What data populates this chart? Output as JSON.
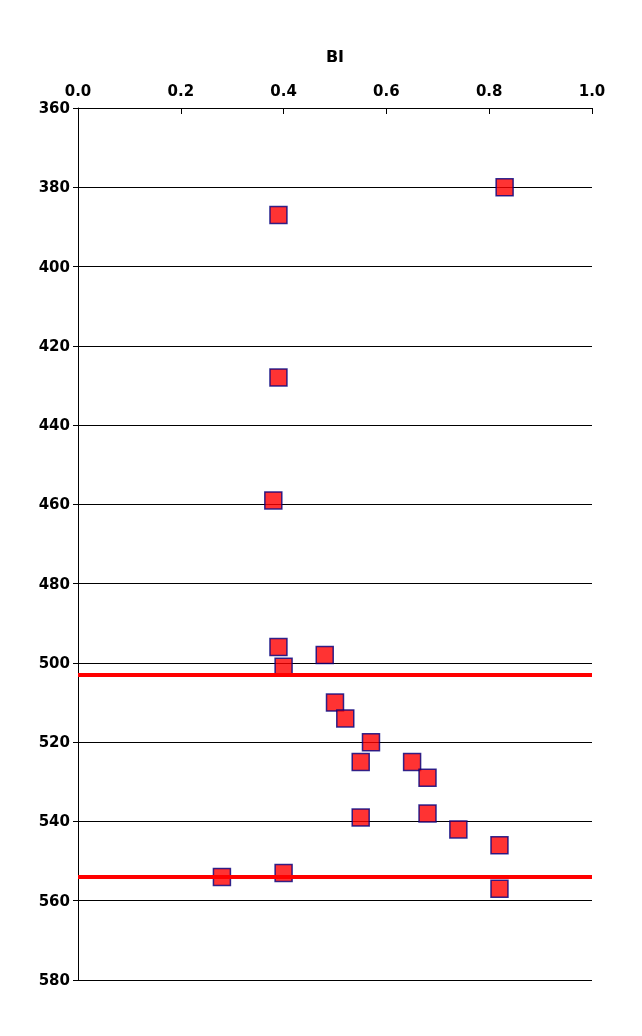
{
  "chart_data": {
    "type": "scatter",
    "xlabel": "BI",
    "marker": "square",
    "grid": "y",
    "x": [
      0.83,
      0.39,
      0.39,
      0.38,
      0.39,
      0.48,
      0.4,
      0.5,
      0.52,
      0.57,
      0.55,
      0.65,
      0.68,
      0.68,
      0.55,
      0.74,
      0.82,
      0.28,
      0.4,
      0.82
    ],
    "series": [
      {
        "color": "#ff0000",
        "values": [
          380,
          387,
          428,
          459,
          496,
          498,
          501,
          510,
          514,
          520,
          525,
          525,
          529,
          538,
          539,
          542,
          546,
          554,
          553,
          557
        ]
      }
    ],
    "xlim": [
      0,
      1
    ],
    "xticks": [
      {
        "value": 0,
        "label": "0.0"
      },
      {
        "value": 0.2,
        "label": "0.2"
      },
      {
        "value": 0.4,
        "label": "0.4"
      },
      {
        "value": 0.6,
        "label": "0.6"
      },
      {
        "value": 0.8,
        "label": "0.8"
      },
      {
        "value": 1,
        "label": "1.0"
      }
    ],
    "ylim": [
      580,
      360
    ],
    "yticks": [
      360,
      380,
      400,
      420,
      440,
      460,
      480,
      500,
      520,
      540,
      560,
      580
    ],
    "ref_lines": [
      {
        "axis": "y",
        "value": 503,
        "color": "#ff0000"
      },
      {
        "axis": "y",
        "value": 554,
        "color": "#ff0000"
      }
    ]
  }
}
